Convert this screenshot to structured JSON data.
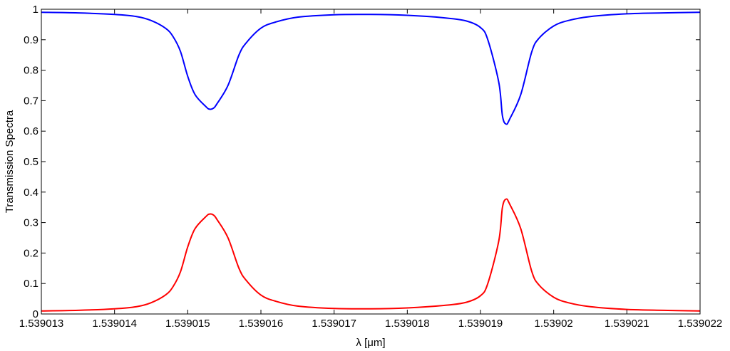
{
  "chart_data": {
    "type": "line",
    "xlabel": "λ [μm]",
    "ylabel": "Transmission Spectra",
    "xlim": [
      1.539013,
      1.539022
    ],
    "ylim": [
      0,
      1
    ],
    "x_ticks": [
      "1.539013",
      "1.539014",
      "1.539015",
      "1.539016",
      "1.539017",
      "1.539018",
      "1.539019",
      "1.53902",
      "1.539021",
      "1.539022"
    ],
    "y_ticks": [
      "0",
      "0.1",
      "0.2",
      "0.3",
      "0.4",
      "0.5",
      "0.6",
      "0.7",
      "0.8",
      "0.9",
      "1"
    ],
    "grid": false,
    "series_colors": [
      "#0000ff",
      "#ff0000"
    ],
    "x": [
      1.539013,
      1.5390135,
      1.539014,
      1.5390143,
      1.5390145,
      1.5390147,
      1.5390148,
      1.5390149,
      1.539015,
      1.5390151,
      1.53901525,
      1.5390153,
      1.53901535,
      1.5390154,
      1.53901555,
      1.5390157,
      1.5390158,
      1.539016,
      1.5390162,
      1.5390165,
      1.539017,
      1.5390175,
      1.539018,
      1.5390185,
      1.5390188,
      1.539019,
      1.5390191,
      1.53901925,
      1.5390193,
      1.53901935,
      1.5390194,
      1.53901955,
      1.5390197,
      1.5390198,
      1.53902,
      1.5390202,
      1.5390205,
      1.539021,
      1.5390215,
      1.539022
    ],
    "series": [
      {
        "values": [
          0.99,
          0.988,
          0.983,
          0.976,
          0.963,
          0.937,
          0.91,
          0.862,
          0.78,
          0.72,
          0.68,
          0.672,
          0.675,
          0.69,
          0.75,
          0.85,
          0.89,
          0.938,
          0.958,
          0.974,
          0.982,
          0.983,
          0.98,
          0.972,
          0.962,
          0.94,
          0.9,
          0.76,
          0.65,
          0.623,
          0.64,
          0.72,
          0.86,
          0.905,
          0.945,
          0.963,
          0.976,
          0.985,
          0.988,
          0.99
        ]
      },
      {
        "values": [
          0.01,
          0.012,
          0.017,
          0.024,
          0.037,
          0.063,
          0.09,
          0.138,
          0.22,
          0.28,
          0.32,
          0.328,
          0.325,
          0.31,
          0.25,
          0.15,
          0.11,
          0.062,
          0.042,
          0.026,
          0.018,
          0.017,
          0.02,
          0.028,
          0.038,
          0.06,
          0.1,
          0.24,
          0.35,
          0.377,
          0.36,
          0.28,
          0.14,
          0.095,
          0.055,
          0.037,
          0.024,
          0.015,
          0.012,
          0.01
        ]
      }
    ]
  }
}
